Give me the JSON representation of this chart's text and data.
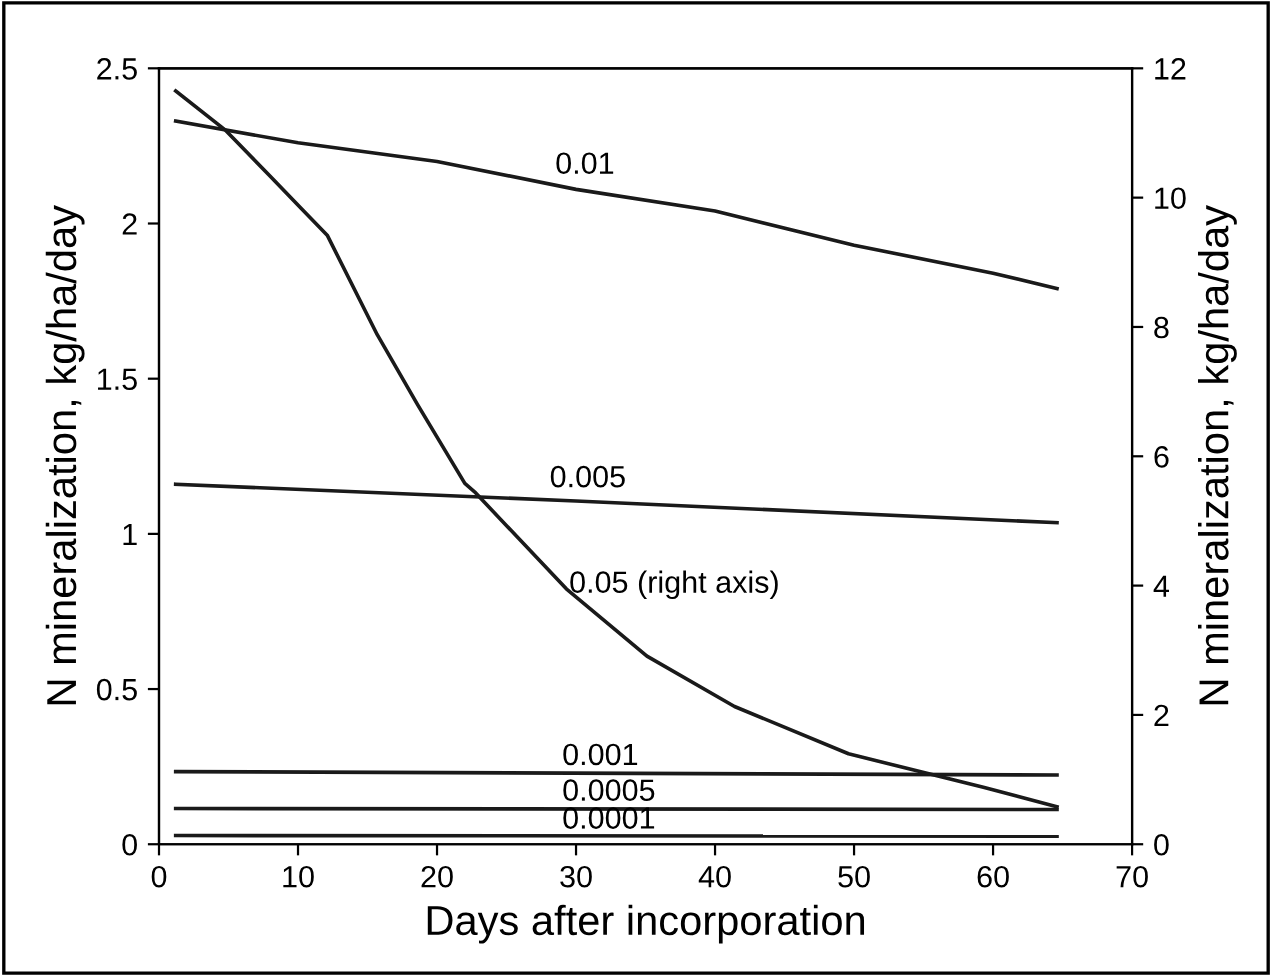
{
  "chart_data": {
    "type": "line",
    "xlabel": "Days after incorporation",
    "ylabel": "N mineralization, kg/ha/day",
    "y2label": "N mineralization, kg/ha/day",
    "xlim": [
      0,
      70
    ],
    "xticks": [
      0,
      10,
      20,
      30,
      40,
      50,
      60,
      70
    ],
    "ylim": [
      0,
      2.5
    ],
    "yticks": [
      0,
      0.5,
      1,
      1.5,
      2,
      2.5
    ],
    "y2lim": [
      0,
      12
    ],
    "y2ticks": [
      0,
      2,
      4,
      6,
      8,
      10,
      12
    ],
    "grid": false,
    "legend": false,
    "marker": "none",
    "line_style": "solid",
    "series": [
      {
        "color": "#1a1a1a",
        "x": [
          1.2,
          10,
          20,
          30,
          40,
          50,
          60,
          64.6
        ],
        "values": [
          2.33,
          2.26,
          2.2,
          2.11,
          2.04,
          1.93,
          1.84,
          1.79
        ]
      },
      {
        "color": "#1a1a1a",
        "x": [
          1.2,
          30,
          64.6
        ],
        "values": [
          1.16,
          1.106,
          1.036
        ]
      },
      {
        "color": "#1a1a1a",
        "x": [
          1.2,
          64.6
        ],
        "values": [
          0.234,
          0.223
        ]
      },
      {
        "color": "#1a1a1a",
        "x": [
          1.2,
          64.6
        ],
        "values": [
          0.115,
          0.112
        ]
      },
      {
        "color": "#1a1a1a",
        "x": [
          1.2,
          64.6
        ],
        "values": [
          0.028,
          0.026
        ]
      },
      {
        "color": "#1a1a1a",
        "axis": "y2",
        "x": [
          1.2,
          4.8,
          8,
          10.2,
          12.1,
          15.7,
          18.6,
          22,
          22.7,
          29.3,
          35.1,
          41.4,
          49.6,
          53.5,
          59.3,
          64.6
        ],
        "values": [
          11.65,
          11.04,
          10.33,
          9.84,
          9.42,
          7.88,
          6.8,
          5.58,
          5.45,
          3.95,
          2.91,
          2.13,
          1.4,
          1.19,
          0.88,
          0.58
        ]
      }
    ],
    "annotations": [
      {
        "text": "0.01",
        "x": 28.5,
        "y": 2.14
      },
      {
        "text": "0.005",
        "x": 28.1,
        "y": 1.13
      },
      {
        "text": "0.05 (right axis)",
        "x": 29.5,
        "y": 0.79
      },
      {
        "text": "0.001",
        "x": 29,
        "y": 0.235
      },
      {
        "text": "0.0005",
        "x": 29,
        "y": 0.12
      },
      {
        "text": "0.0001",
        "x": 29,
        "y": 0.03
      }
    ]
  }
}
